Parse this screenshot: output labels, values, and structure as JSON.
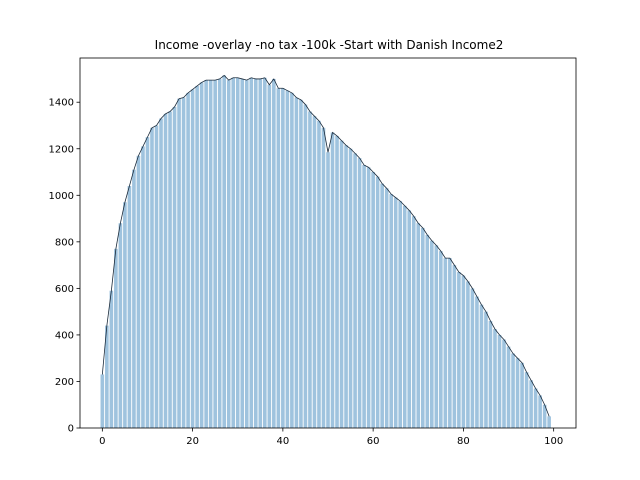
{
  "chart_data": {
    "type": "bar",
    "title": "Income -overlay -no tax -100k -Start with Danish Income2",
    "x": [
      0,
      1,
      2,
      3,
      4,
      5,
      6,
      7,
      8,
      9,
      10,
      11,
      12,
      13,
      14,
      15,
      16,
      17,
      18,
      19,
      20,
      21,
      22,
      23,
      24,
      25,
      26,
      27,
      28,
      29,
      30,
      31,
      32,
      33,
      34,
      35,
      36,
      37,
      38,
      39,
      40,
      41,
      42,
      43,
      44,
      45,
      46,
      47,
      48,
      49,
      50,
      51,
      52,
      53,
      54,
      55,
      56,
      57,
      58,
      59,
      60,
      61,
      62,
      63,
      64,
      65,
      66,
      67,
      68,
      69,
      70,
      71,
      72,
      73,
      74,
      75,
      76,
      77,
      78,
      79,
      80,
      81,
      82,
      83,
      84,
      85,
      86,
      87,
      88,
      89,
      90,
      91,
      92,
      93,
      94,
      95,
      96,
      97,
      98,
      99
    ],
    "values": [
      230,
      440,
      590,
      770,
      880,
      970,
      1040,
      1110,
      1170,
      1210,
      1250,
      1290,
      1300,
      1330,
      1350,
      1360,
      1380,
      1415,
      1420,
      1440,
      1455,
      1470,
      1485,
      1495,
      1495,
      1495,
      1500,
      1515,
      1495,
      1505,
      1505,
      1500,
      1495,
      1505,
      1500,
      1500,
      1505,
      1475,
      1500,
      1460,
      1460,
      1450,
      1440,
      1420,
      1410,
      1390,
      1360,
      1340,
      1320,
      1290,
      1185,
      1270,
      1255,
      1235,
      1215,
      1200,
      1180,
      1160,
      1130,
      1120,
      1100,
      1080,
      1050,
      1030,
      1005,
      990,
      975,
      955,
      935,
      910,
      880,
      860,
      830,
      805,
      785,
      760,
      730,
      730,
      700,
      670,
      655,
      630,
      600,
      565,
      530,
      500,
      460,
      425,
      400,
      380,
      350,
      320,
      300,
      280,
      240,
      205,
      170,
      140,
      100,
      50
    ],
    "color": "#9fc3de",
    "line_color": "#1a2a3a",
    "xlim": [
      -4.95,
      104.95
    ],
    "ylim": [
      0,
      1590
    ],
    "xticks": [
      0,
      20,
      40,
      60,
      80,
      100
    ],
    "yticks": [
      0,
      200,
      400,
      600,
      800,
      1000,
      1200,
      1400
    ]
  }
}
